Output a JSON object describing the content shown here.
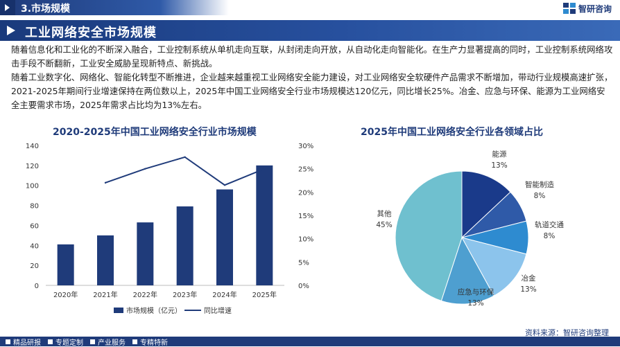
{
  "header": {
    "section_label": "3.市场规模",
    "brand_name": "智研咨询",
    "page_title": "工业网络安全市场规模"
  },
  "intro": {
    "paragraph_1": "随着信息化和工业化的不断深入融合，工业控制系统从单机走向互联，从封闭走向开放，从自动化走向智能化。在生产力显著提高的同时，工业控制系统网络攻击手段不断翻新，工业安全威胁呈现新特点、新挑战。",
    "paragraph_2": "随着工业数字化、网络化、智能化转型不断推进，企业越来越重视工业网络安全能力建设，对工业网络安全软硬件产品需求不断增加，带动行业规模高速扩张，2021-2025年期间行业增速保持在两位数以上，2025年中国工业网络安全行业市场规模达120亿元，同比增长25%。冶金、应急与环保、能源为工业网络安全主要需求市场，2025年需求占比均为13%左右。"
  },
  "chart_data": [
    {
      "type": "bar",
      "title": "2020-2025年中国工业网络安全行业市场规模",
      "categories": [
        "2020年",
        "2021年",
        "2022年",
        "2023年",
        "2024年",
        "2025年"
      ],
      "series": [
        {
          "name": "市场规模（亿元）",
          "type": "bar",
          "axis": "left",
          "values": [
            41,
            50,
            63,
            79,
            96,
            120
          ]
        },
        {
          "name": "同比增速",
          "type": "line",
          "axis": "right",
          "values": [
            null,
            22,
            25,
            27.5,
            21.5,
            25
          ]
        }
      ],
      "y_left": {
        "min": 0,
        "max": 140,
        "ticks": [
          0,
          20,
          40,
          60,
          80,
          100,
          120,
          140
        ]
      },
      "y_right": {
        "min": 0,
        "max": 30,
        "ticks": [
          "0%",
          "5%",
          "10%",
          "15%",
          "20%",
          "25%",
          "30%"
        ]
      },
      "legend_position": "bottom",
      "grid": false
    },
    {
      "type": "pie",
      "title": "2025年中国工业网络安全行业各领域占比",
      "slices": [
        {
          "label": "能源",
          "value": 13,
          "value_label": "13%"
        },
        {
          "label": "智能制造",
          "value": 8,
          "value_label": "8%"
        },
        {
          "label": "轨道交通",
          "value": 8,
          "value_label": "8%"
        },
        {
          "label": "冶金",
          "value": 13,
          "value_label": "13%"
        },
        {
          "label": "应急与环保",
          "value": 13,
          "value_label": "13%"
        },
        {
          "label": "其他",
          "value": 45,
          "value_label": "45%"
        }
      ]
    }
  ],
  "colors": {
    "bar": "#1f3b7a",
    "line": "#1f3b7a",
    "pie": [
      "#1a3a8a",
      "#2f5aa8",
      "#2e8bd0",
      "#8cc4ec",
      "#4e9fd0",
      "#6fc0cf"
    ]
  },
  "source": "资料来源：智研咨询整理",
  "footer": {
    "items": [
      "精品研报",
      "专题定制",
      "产业服务",
      "专精特新"
    ]
  }
}
